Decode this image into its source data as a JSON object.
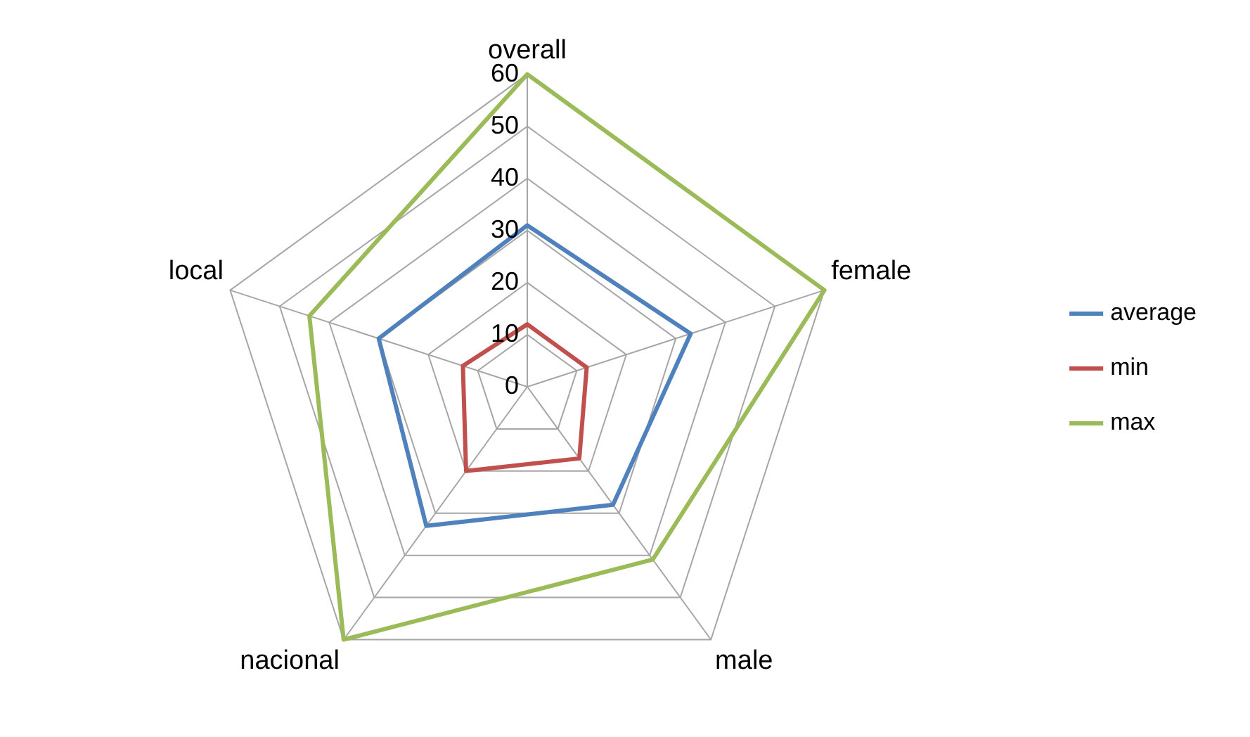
{
  "chart_data": {
    "type": "radar",
    "categories": [
      "overall",
      "female",
      "male",
      "nacional",
      "local"
    ],
    "series": [
      {
        "name": "average",
        "color": "#4f81bd",
        "values": [
          31,
          33,
          28,
          33,
          30
        ]
      },
      {
        "name": "min",
        "color": "#c0504d",
        "values": [
          12,
          12,
          17,
          20,
          13
        ]
      },
      {
        "name": "max",
        "color": "#9bbb59",
        "values": [
          60,
          60,
          41,
          60,
          44
        ]
      }
    ],
    "ylim": [
      0,
      60
    ],
    "yticks": [
      0,
      10,
      20,
      30,
      40,
      50,
      60
    ],
    "grid": true,
    "legend": "right",
    "marker": "none"
  }
}
